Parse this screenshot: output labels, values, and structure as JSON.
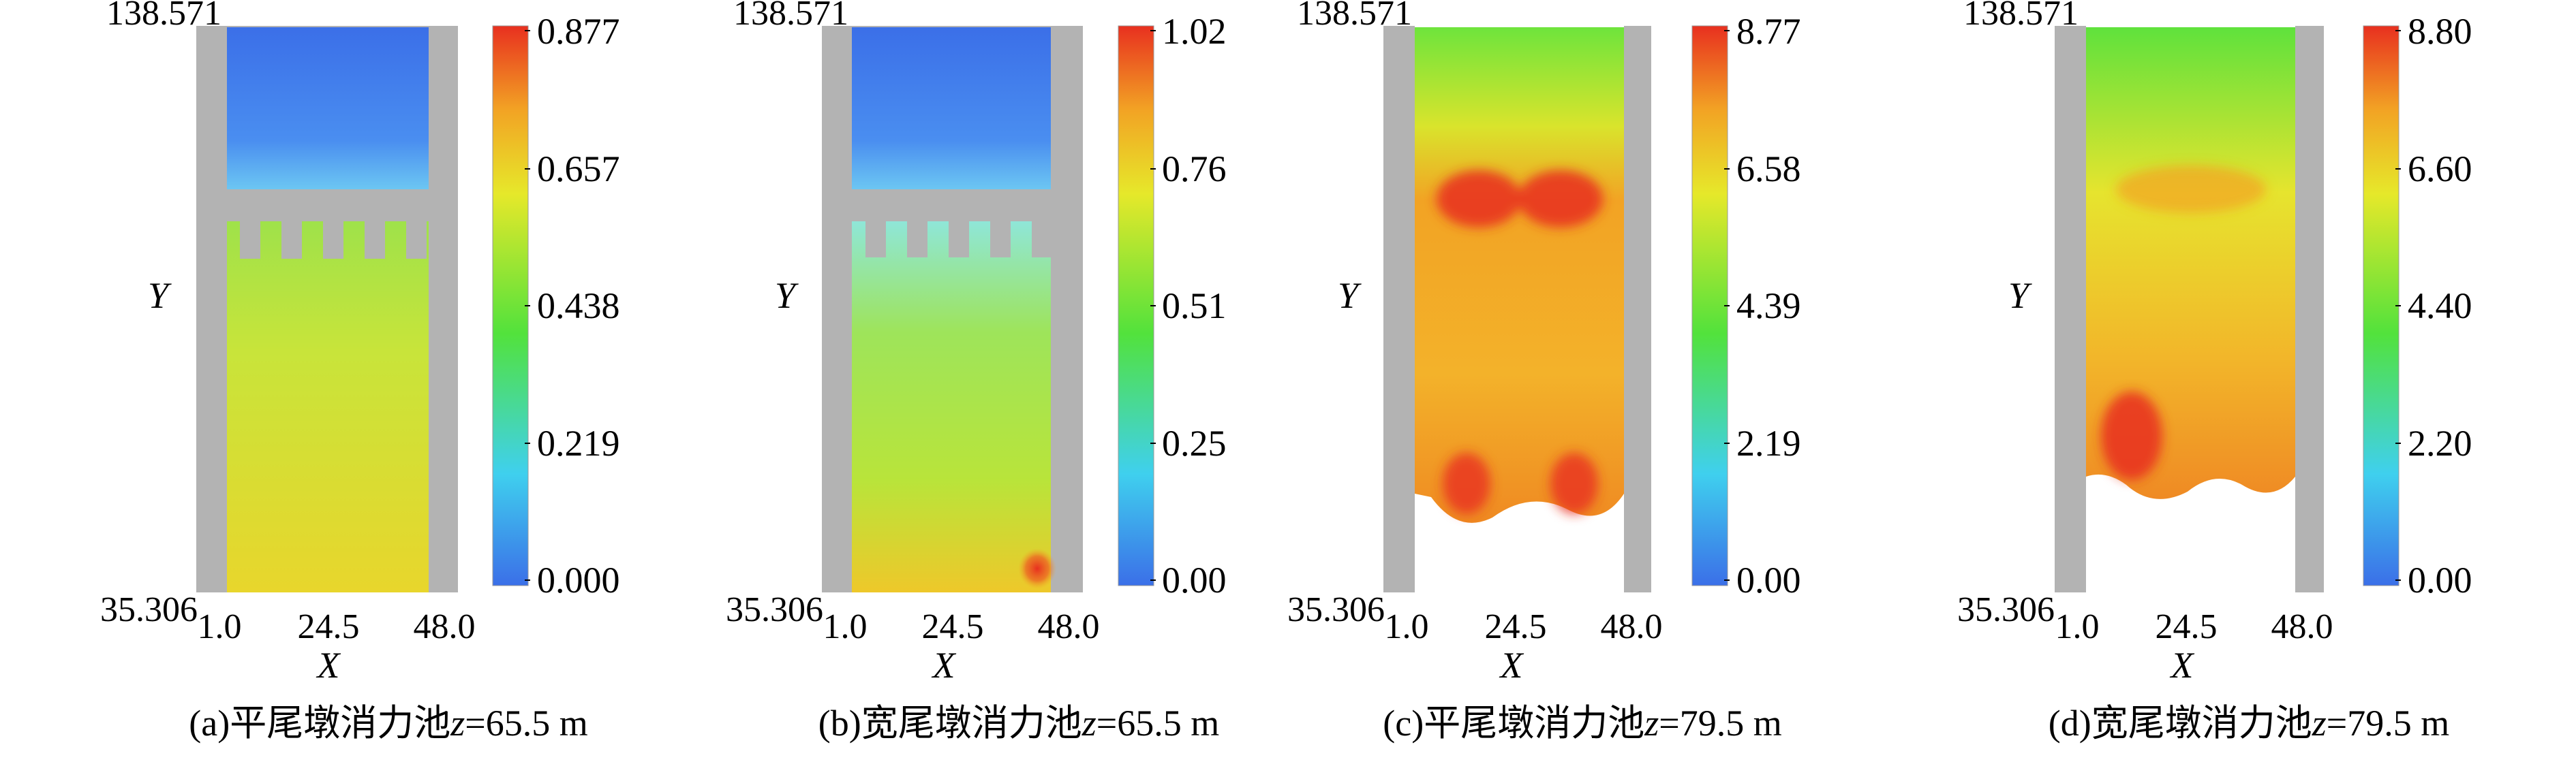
{
  "chart_data": [
    {
      "type": "heatmap",
      "caption": {
        "prefix": "(a)平尾墩消力池",
        "var": "z",
        "suffix": "=65.5 m"
      },
      "xlabel": "X",
      "ylabel": "Y",
      "x_ticks": [
        "1.0",
        "24.5",
        "48.0"
      ],
      "y_ticks": [
        "138.571",
        "35.306"
      ],
      "xlim": [
        1.0,
        48.0
      ],
      "ylim": [
        35.306,
        138.571
      ],
      "colorbar": {
        "ticks": [
          "0.877",
          "0.657",
          "0.438",
          "0.219",
          "0.000"
        ],
        "range": [
          0,
          0.877
        ]
      }
    },
    {
      "type": "heatmap",
      "caption": {
        "prefix": "(b)宽尾墩消力池",
        "var": "z",
        "suffix": "=65.5 m"
      },
      "xlabel": "X",
      "ylabel": "Y",
      "x_ticks": [
        "1.0",
        "24.5",
        "48.0"
      ],
      "y_ticks": [
        "138.571",
        "35.306"
      ],
      "xlim": [
        1.0,
        48.0
      ],
      "ylim": [
        35.306,
        138.571
      ],
      "colorbar": {
        "ticks": [
          "1.02",
          "0.76",
          "0.51",
          "0.25",
          "0.00"
        ],
        "range": [
          0,
          1.02
        ]
      }
    },
    {
      "type": "heatmap",
      "caption": {
        "prefix": "(c)平尾墩消力池",
        "var": "z",
        "suffix": "=79.5 m"
      },
      "xlabel": "X",
      "ylabel": "Y",
      "x_ticks": [
        "1.0",
        "24.5",
        "48.0"
      ],
      "y_ticks": [
        "138.571",
        "35.306"
      ],
      "xlim": [
        1.0,
        48.0
      ],
      "ylim": [
        35.306,
        138.571
      ],
      "colorbar": {
        "ticks": [
          "8.77",
          "6.58",
          "4.39",
          "2.19",
          "0.00"
        ],
        "range": [
          0,
          8.77
        ]
      }
    },
    {
      "type": "heatmap",
      "caption": {
        "prefix": "(d)宽尾墩消力池",
        "var": "z",
        "suffix": "=79.5 m"
      },
      "xlabel": "X",
      "ylabel": "Y",
      "x_ticks": [
        "1.0",
        "24.5",
        "48.0"
      ],
      "y_ticks": [
        "138.571",
        "35.306"
      ],
      "xlim": [
        1.0,
        48.0
      ],
      "ylim": [
        35.306,
        138.571
      ],
      "colorbar": {
        "ticks": [
          "8.80",
          "6.60",
          "4.40",
          "2.20",
          "0.00"
        ],
        "range": [
          0,
          8.8
        ]
      }
    }
  ],
  "colors": {
    "wall": "#b3b3b3",
    "colormap": [
      "#3b6fe8",
      "#3fd0ee",
      "#52e23c",
      "#e6e82a",
      "#f2a324",
      "#e8301f"
    ]
  }
}
